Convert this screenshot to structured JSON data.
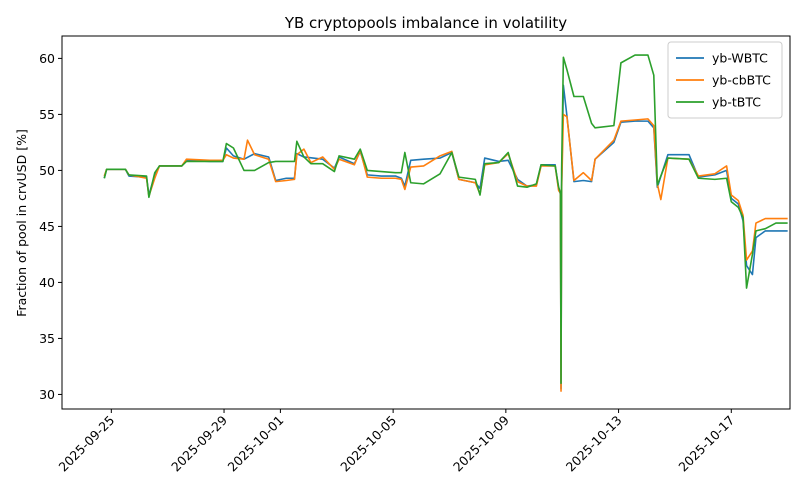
{
  "chart_data": {
    "type": "line",
    "title": "YB cryptopools imbalance in volatility",
    "xlabel": "",
    "ylabel": "Fraction of pool in crvUSD [%]",
    "x_type": "date",
    "xlim": [
      "2025-09-23T06:00",
      "2025-10-19T02:00"
    ],
    "ylim": [
      28.7,
      62.0
    ],
    "x_ticks": [
      "2025-09-25",
      "2025-09-29",
      "2025-10-01",
      "2025-10-05",
      "2025-10-09",
      "2025-10-13",
      "2025-10-17"
    ],
    "y_ticks": [
      30,
      35,
      40,
      45,
      50,
      55,
      60
    ],
    "grid": false,
    "legend_position": "top-right",
    "series": [
      {
        "name": "yb-WBTC",
        "color": "#1f77b4",
        "points": [
          [
            "2025-09-24T18:00",
            49.3
          ],
          [
            "2025-09-24T20:00",
            50.1
          ],
          [
            "2025-09-25T12:00",
            50.1
          ],
          [
            "2025-09-25T15:00",
            49.5
          ],
          [
            "2025-09-26T06:00",
            49.4
          ],
          [
            "2025-09-26T08:00",
            47.8
          ],
          [
            "2025-09-26T13:00",
            49.6
          ],
          [
            "2025-09-26T17:00",
            50.4
          ],
          [
            "2025-09-27T12:00",
            50.4
          ],
          [
            "2025-09-27T16:00",
            50.9
          ],
          [
            "2025-09-28T12:00",
            50.8
          ],
          [
            "2025-09-28T23:00",
            50.8
          ],
          [
            "2025-09-29T02:00",
            52.0
          ],
          [
            "2025-09-29T08:00",
            51.3
          ],
          [
            "2025-09-29T17:00",
            51.0
          ],
          [
            "2025-09-30T02:00",
            51.5
          ],
          [
            "2025-09-30T14:00",
            51.2
          ],
          [
            "2025-09-30T20:00",
            49.1
          ],
          [
            "2025-10-01T05:00",
            49.3
          ],
          [
            "2025-10-01T12:00",
            49.3
          ],
          [
            "2025-10-01T14:00",
            51.5
          ],
          [
            "2025-10-01T20:00",
            51.2
          ],
          [
            "2025-10-02T12:00",
            51.0
          ],
          [
            "2025-10-02T22:00",
            50.2
          ],
          [
            "2025-10-03T02:00",
            51.2
          ],
          [
            "2025-10-03T15:00",
            50.6
          ],
          [
            "2025-10-03T20:00",
            51.7
          ],
          [
            "2025-10-04T02:00",
            49.6
          ],
          [
            "2025-10-04T14:00",
            49.5
          ],
          [
            "2025-10-05T02:00",
            49.5
          ],
          [
            "2025-10-05T07:00",
            49.3
          ],
          [
            "2025-10-05T10:00",
            48.6
          ],
          [
            "2025-10-05T15:00",
            50.9
          ],
          [
            "2025-10-06T02:00",
            51.0
          ],
          [
            "2025-10-06T16:00",
            51.1
          ],
          [
            "2025-10-07T02:00",
            51.6
          ],
          [
            "2025-10-07T08:00",
            49.2
          ],
          [
            "2025-10-07T22:00",
            48.9
          ],
          [
            "2025-10-08T02:00",
            48.4
          ],
          [
            "2025-10-08T06:00",
            51.1
          ],
          [
            "2025-10-08T18:00",
            50.8
          ],
          [
            "2025-10-09T02:00",
            50.9
          ],
          [
            "2025-10-09T10:00",
            49.2
          ],
          [
            "2025-10-09T18:00",
            48.6
          ],
          [
            "2025-10-10T02:00",
            48.7
          ],
          [
            "2025-10-10T06:00",
            50.5
          ],
          [
            "2025-10-10T18:00",
            50.5
          ],
          [
            "2025-10-10T21:00",
            48.3
          ],
          [
            "2025-10-10T22:30",
            47.9
          ],
          [
            "2025-10-10T23:00",
            30.5
          ],
          [
            "2025-10-10T23:30",
            48.5
          ],
          [
            "2025-10-11T01:00",
            57.6
          ],
          [
            "2025-10-11T04:00",
            54.9
          ],
          [
            "2025-10-11T10:00",
            49.0
          ],
          [
            "2025-10-11T18:00",
            49.1
          ],
          [
            "2025-10-12T01:00",
            49.0
          ],
          [
            "2025-10-12T04:00",
            51.0
          ],
          [
            "2025-10-12T20:00",
            52.5
          ],
          [
            "2025-10-13T02:00",
            54.3
          ],
          [
            "2025-10-13T14:00",
            54.4
          ],
          [
            "2025-10-14T01:00",
            54.4
          ],
          [
            "2025-10-14T06:00",
            53.8
          ],
          [
            "2025-10-14T09:00",
            48.5
          ],
          [
            "2025-10-14T18:00",
            51.4
          ],
          [
            "2025-10-15T12:00",
            51.4
          ],
          [
            "2025-10-15T20:00",
            49.4
          ],
          [
            "2025-10-16T10:00",
            49.6
          ],
          [
            "2025-10-16T20:00",
            50.0
          ],
          [
            "2025-10-17T00:00",
            47.5
          ],
          [
            "2025-10-17T06:00",
            47.0
          ],
          [
            "2025-10-17T10:00",
            45.5
          ],
          [
            "2025-10-17T13:00",
            41.5
          ],
          [
            "2025-10-17T18:00",
            40.7
          ],
          [
            "2025-10-17T21:00",
            44.0
          ],
          [
            "2025-10-18T05:00",
            44.6
          ],
          [
            "2025-10-18T14:00",
            44.6
          ],
          [
            "2025-10-19T00:00",
            44.6
          ]
        ]
      },
      {
        "name": "yb-cbBTC",
        "color": "#ff7f0e",
        "points": [
          [
            "2025-09-24T18:00",
            49.5
          ],
          [
            "2025-09-24T20:00",
            50.1
          ],
          [
            "2025-09-25T12:00",
            50.1
          ],
          [
            "2025-09-25T15:00",
            49.6
          ],
          [
            "2025-09-26T06:00",
            49.3
          ],
          [
            "2025-09-26T08:00",
            47.7
          ],
          [
            "2025-09-26T13:00",
            49.3
          ],
          [
            "2025-09-26T17:00",
            50.4
          ],
          [
            "2025-09-27T12:00",
            50.4
          ],
          [
            "2025-09-27T16:00",
            51.0
          ],
          [
            "2025-09-28T12:00",
            50.9
          ],
          [
            "2025-09-28T23:00",
            50.9
          ],
          [
            "2025-09-29T02:00",
            51.4
          ],
          [
            "2025-09-29T08:00",
            51.1
          ],
          [
            "2025-09-29T17:00",
            51.0
          ],
          [
            "2025-09-29T20:00",
            52.7
          ],
          [
            "2025-09-30T02:00",
            51.4
          ],
          [
            "2025-09-30T14:00",
            51.0
          ],
          [
            "2025-09-30T20:00",
            49.0
          ],
          [
            "2025-10-01T05:00",
            49.1
          ],
          [
            "2025-10-01T12:00",
            49.2
          ],
          [
            "2025-10-01T14:00",
            51.4
          ],
          [
            "2025-10-01T20:00",
            51.9
          ],
          [
            "2025-10-02T02:00",
            50.7
          ],
          [
            "2025-10-02T12:00",
            51.2
          ],
          [
            "2025-10-02T22:00",
            50.1
          ],
          [
            "2025-10-03T02:00",
            51.0
          ],
          [
            "2025-10-03T15:00",
            50.5
          ],
          [
            "2025-10-03T20:00",
            51.8
          ],
          [
            "2025-10-04T02:00",
            49.4
          ],
          [
            "2025-10-04T14:00",
            49.3
          ],
          [
            "2025-10-05T02:00",
            49.3
          ],
          [
            "2025-10-05T07:00",
            49.2
          ],
          [
            "2025-10-05T10:00",
            48.3
          ],
          [
            "2025-10-05T15:00",
            50.3
          ],
          [
            "2025-10-06T02:00",
            50.4
          ],
          [
            "2025-10-06T16:00",
            51.3
          ],
          [
            "2025-10-07T02:00",
            51.7
          ],
          [
            "2025-10-07T08:00",
            49.2
          ],
          [
            "2025-10-07T22:00",
            48.9
          ],
          [
            "2025-10-08T02:00",
            47.9
          ],
          [
            "2025-10-08T06:00",
            50.5
          ],
          [
            "2025-10-08T18:00",
            50.7
          ],
          [
            "2025-10-09T02:00",
            51.5
          ],
          [
            "2025-10-09T10:00",
            49.0
          ],
          [
            "2025-10-09T18:00",
            48.6
          ],
          [
            "2025-10-10T02:00",
            48.6
          ],
          [
            "2025-10-10T06:00",
            50.4
          ],
          [
            "2025-10-10T18:00",
            50.4
          ],
          [
            "2025-10-10T21:00",
            48.2
          ],
          [
            "2025-10-10T22:30",
            48.0
          ],
          [
            "2025-10-10T23:00",
            30.3
          ],
          [
            "2025-10-10T23:30",
            48.2
          ],
          [
            "2025-10-11T01:00",
            55.0
          ],
          [
            "2025-10-11T04:00",
            54.8
          ],
          [
            "2025-10-11T10:00",
            49.1
          ],
          [
            "2025-10-11T18:00",
            49.8
          ],
          [
            "2025-10-12T01:00",
            49.1
          ],
          [
            "2025-10-12T04:00",
            51.0
          ],
          [
            "2025-10-12T20:00",
            52.7
          ],
          [
            "2025-10-13T02:00",
            54.4
          ],
          [
            "2025-10-13T14:00",
            54.5
          ],
          [
            "2025-10-14T01:00",
            54.6
          ],
          [
            "2025-10-14T06:00",
            54.0
          ],
          [
            "2025-10-14T09:00",
            48.8
          ],
          [
            "2025-10-14T12:00",
            47.4
          ],
          [
            "2025-10-14T18:00",
            51.1
          ],
          [
            "2025-10-15T12:00",
            51.0
          ],
          [
            "2025-10-15T20:00",
            49.5
          ],
          [
            "2025-10-16T10:00",
            49.7
          ],
          [
            "2025-10-16T20:00",
            50.4
          ],
          [
            "2025-10-17T00:00",
            47.8
          ],
          [
            "2025-10-17T06:00",
            47.3
          ],
          [
            "2025-10-17T10:00",
            46.0
          ],
          [
            "2025-10-17T13:00",
            42.0
          ],
          [
            "2025-10-17T18:00",
            42.8
          ],
          [
            "2025-10-17T21:00",
            45.3
          ],
          [
            "2025-10-18T05:00",
            45.7
          ],
          [
            "2025-10-18T14:00",
            45.7
          ],
          [
            "2025-10-19T00:00",
            45.7
          ]
        ]
      },
      {
        "name": "yb-tBTC",
        "color": "#2ca02c",
        "points": [
          [
            "2025-09-24T18:00",
            49.3
          ],
          [
            "2025-09-24T20:00",
            50.1
          ],
          [
            "2025-09-25T12:00",
            50.1
          ],
          [
            "2025-09-25T15:00",
            49.6
          ],
          [
            "2025-09-26T06:00",
            49.5
          ],
          [
            "2025-09-26T08:00",
            47.6
          ],
          [
            "2025-09-26T13:00",
            49.8
          ],
          [
            "2025-09-26T17:00",
            50.4
          ],
          [
            "2025-09-27T12:00",
            50.4
          ],
          [
            "2025-09-27T16:00",
            50.8
          ],
          [
            "2025-09-28T12:00",
            50.8
          ],
          [
            "2025-09-28T23:00",
            50.8
          ],
          [
            "2025-09-29T02:00",
            52.4
          ],
          [
            "2025-09-29T08:00",
            52.0
          ],
          [
            "2025-09-29T17:00",
            50.0
          ],
          [
            "2025-09-30T02:00",
            50.0
          ],
          [
            "2025-09-30T14:00",
            50.7
          ],
          [
            "2025-09-30T20:00",
            50.8
          ],
          [
            "2025-10-01T05:00",
            50.8
          ],
          [
            "2025-10-01T12:00",
            50.8
          ],
          [
            "2025-10-01T14:00",
            52.6
          ],
          [
            "2025-10-01T20:00",
            51.2
          ],
          [
            "2025-10-02T02:00",
            50.6
          ],
          [
            "2025-10-02T12:00",
            50.6
          ],
          [
            "2025-10-02T22:00",
            49.9
          ],
          [
            "2025-10-03T02:00",
            51.3
          ],
          [
            "2025-10-03T15:00",
            51.0
          ],
          [
            "2025-10-03T20:00",
            51.9
          ],
          [
            "2025-10-04T02:00",
            50.0
          ],
          [
            "2025-10-04T14:00",
            49.9
          ],
          [
            "2025-10-05T02:00",
            49.8
          ],
          [
            "2025-10-05T07:00",
            49.8
          ],
          [
            "2025-10-05T10:00",
            51.6
          ],
          [
            "2025-10-05T15:00",
            48.9
          ],
          [
            "2025-10-06T02:00",
            48.8
          ],
          [
            "2025-10-06T16:00",
            49.7
          ],
          [
            "2025-10-07T02:00",
            51.6
          ],
          [
            "2025-10-07T08:00",
            49.4
          ],
          [
            "2025-10-07T22:00",
            49.2
          ],
          [
            "2025-10-08T02:00",
            47.8
          ],
          [
            "2025-10-08T06:00",
            50.6
          ],
          [
            "2025-10-08T18:00",
            50.7
          ],
          [
            "2025-10-09T02:00",
            51.6
          ],
          [
            "2025-10-09T10:00",
            48.6
          ],
          [
            "2025-10-09T18:00",
            48.5
          ],
          [
            "2025-10-10T02:00",
            48.8
          ],
          [
            "2025-10-10T06:00",
            50.5
          ],
          [
            "2025-10-10T18:00",
            50.4
          ],
          [
            "2025-10-10T21:00",
            48.5
          ],
          [
            "2025-10-10T22:30",
            48.0
          ],
          [
            "2025-10-10T23:00",
            31.0
          ],
          [
            "2025-10-10T23:30",
            50.0
          ],
          [
            "2025-10-11T01:00",
            60.1
          ],
          [
            "2025-10-11T04:00",
            59.0
          ],
          [
            "2025-10-11T10:00",
            56.6
          ],
          [
            "2025-10-11T18:00",
            56.6
          ],
          [
            "2025-10-12T01:00",
            54.2
          ],
          [
            "2025-10-12T04:00",
            53.8
          ],
          [
            "2025-10-12T20:00",
            54.0
          ],
          [
            "2025-10-13T02:00",
            59.6
          ],
          [
            "2025-10-13T14:00",
            60.3
          ],
          [
            "2025-10-14T01:00",
            60.3
          ],
          [
            "2025-10-14T06:00",
            58.5
          ],
          [
            "2025-10-14T09:00",
            48.7
          ],
          [
            "2025-10-14T18:00",
            51.1
          ],
          [
            "2025-10-15T12:00",
            51.0
          ],
          [
            "2025-10-15T20:00",
            49.3
          ],
          [
            "2025-10-16T10:00",
            49.2
          ],
          [
            "2025-10-16T20:00",
            49.3
          ],
          [
            "2025-10-17T00:00",
            47.2
          ],
          [
            "2025-10-17T06:00",
            46.7
          ],
          [
            "2025-10-17T10:00",
            45.8
          ],
          [
            "2025-10-17T13:00",
            39.5
          ],
          [
            "2025-10-17T18:00",
            42.5
          ],
          [
            "2025-10-17T21:00",
            44.6
          ],
          [
            "2025-10-18T05:00",
            44.8
          ],
          [
            "2025-10-18T14:00",
            45.3
          ],
          [
            "2025-10-19T00:00",
            45.3
          ]
        ]
      }
    ]
  }
}
